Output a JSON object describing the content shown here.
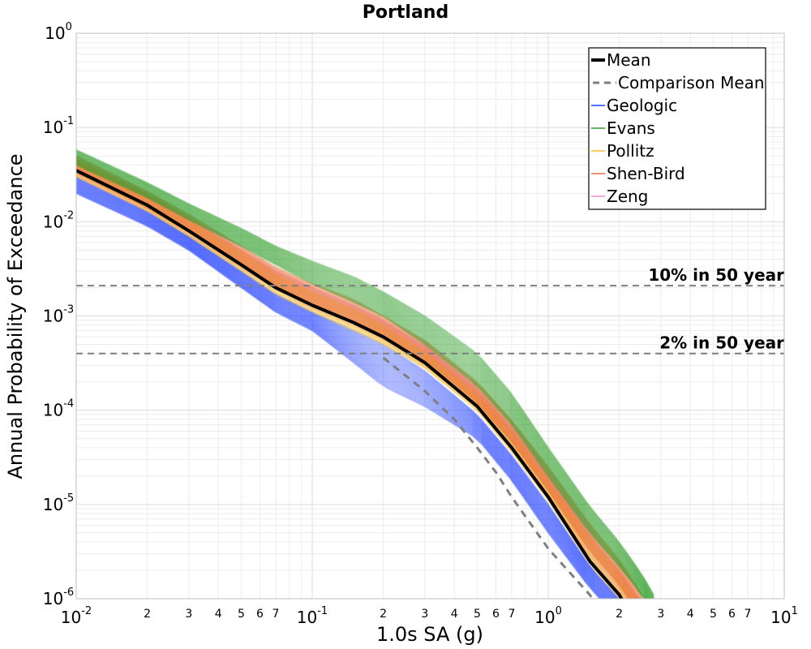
{
  "chart_data": {
    "type": "line",
    "title": "Portland",
    "xlabel": "1.0s SA (g)",
    "ylabel": "Annual Probability of Exceedance",
    "xscale": "log",
    "yscale": "log",
    "xlim": [
      0.01,
      10
    ],
    "ylim": [
      1e-06,
      1
    ],
    "grid": true,
    "legend_position": "top-right",
    "x_major_ticks": [
      {
        "value": 0.01,
        "base": "10",
        "exp": "-2"
      },
      {
        "value": 0.1,
        "base": "10",
        "exp": "-1"
      },
      {
        "value": 1,
        "base": "10",
        "exp": "0"
      },
      {
        "value": 10,
        "base": "10",
        "exp": "1"
      }
    ],
    "x_minor_labels": [
      "2",
      "3",
      "4",
      "5",
      "6",
      "7"
    ],
    "y_major_ticks": [
      {
        "value": 1,
        "base": "10",
        "exp": "0"
      },
      {
        "value": 0.1,
        "base": "10",
        "exp": "-1"
      },
      {
        "value": 0.01,
        "base": "10",
        "exp": "-2"
      },
      {
        "value": 0.001,
        "base": "10",
        "exp": "-3"
      },
      {
        "value": 0.0001,
        "base": "10",
        "exp": "-4"
      },
      {
        "value": 1e-05,
        "base": "10",
        "exp": "-5"
      },
      {
        "value": 1e-06,
        "base": "10",
        "exp": "-6"
      }
    ],
    "reference_lines": [
      {
        "label": "10% in 50 year",
        "y": 0.0021,
        "color": "#7f7f7f"
      },
      {
        "label": "2% in 50 year",
        "y": 0.0004,
        "color": "#7f7f7f"
      }
    ],
    "series": [
      {
        "name": "Mean",
        "color": "#000000",
        "style": "solid",
        "x": [
          0.01,
          0.02,
          0.03,
          0.05,
          0.07,
          0.1,
          0.15,
          0.2,
          0.3,
          0.5,
          0.7,
          1.0,
          1.5,
          2.0,
          2.5
        ],
        "y": [
          0.035,
          0.015,
          0.008,
          0.0035,
          0.002,
          0.0013,
          0.00085,
          0.0006,
          0.00032,
          0.00011,
          4e-05,
          1.2e-05,
          2.5e-06,
          1.1e-06,
          4e-07
        ]
      },
      {
        "name": "Comparison Mean",
        "color": "#7f7f7f",
        "style": "dashed",
        "x": [
          0.2,
          0.3,
          0.4,
          0.5,
          0.6,
          0.7,
          1.0,
          1.5,
          2.0
        ],
        "y": [
          0.00036,
          0.00016,
          8e-05,
          4e-05,
          2.2e-05,
          1.2e-05,
          3.4e-06,
          1.1e-06,
          4e-07
        ]
      },
      {
        "name": "Geologic",
        "color": "#1f3fff",
        "band": "lower",
        "x": [
          0.01,
          0.02,
          0.03,
          0.05,
          0.07,
          0.1,
          0.15,
          0.2,
          0.3,
          0.5,
          0.7,
          1.0,
          1.5,
          2.0,
          2.5
        ],
        "lower": [
          0.02,
          0.009,
          0.005,
          0.002,
          0.0011,
          0.0007,
          0.00032,
          0.00018,
          0.00011,
          5e-05,
          1.8e-05,
          5e-06,
          1.3e-06,
          6e-07,
          4e-07
        ],
        "upper": [
          0.03,
          0.013,
          0.007,
          0.003,
          0.0017,
          0.0011,
          0.0007,
          0.0005,
          0.00026,
          9e-05,
          3.3e-05,
          1e-05,
          2.2e-06,
          1e-06,
          5e-07
        ]
      },
      {
        "name": "Evans",
        "color": "#33a02c",
        "band": "upper",
        "x": [
          0.01,
          0.02,
          0.03,
          0.05,
          0.07,
          0.1,
          0.15,
          0.2,
          0.3,
          0.5,
          0.7,
          1.0,
          1.5,
          2.0,
          2.5,
          2.8
        ],
        "lower": [
          0.04,
          0.018,
          0.0105,
          0.0055,
          0.0035,
          0.0022,
          0.0014,
          0.001,
          0.0005,
          0.00018,
          7e-05,
          2e-05,
          5e-06,
          2.2e-06,
          1.1e-06,
          6e-07
        ],
        "upper": [
          0.058,
          0.026,
          0.0155,
          0.0085,
          0.0055,
          0.0038,
          0.0026,
          0.0018,
          0.001,
          0.0004,
          0.00015,
          4e-05,
          9.5e-06,
          4e-06,
          1.8e-06,
          1.1e-06
        ]
      },
      {
        "name": "Pollitz",
        "color": "#f2c23a",
        "x": [
          0.01,
          0.02,
          0.03,
          0.05,
          0.07,
          0.1,
          0.15,
          0.2,
          0.3,
          0.5,
          0.7,
          1.0,
          1.5,
          2.0,
          2.5
        ],
        "lower": [
          0.03,
          0.013,
          0.007,
          0.003,
          0.0017,
          0.0011,
          0.0007,
          0.0005,
          0.00028,
          0.0001,
          3.6e-05,
          1.1e-05,
          2.3e-06,
          1e-06,
          5e-07
        ],
        "upper": [
          0.045,
          0.019,
          0.0105,
          0.0048,
          0.0028,
          0.0018,
          0.0012,
          0.0008,
          0.00042,
          0.00015,
          6e-05,
          1.8e-05,
          4.5e-06,
          1.9e-06,
          8e-07
        ]
      },
      {
        "name": "Shen-Bird",
        "color": "#e8743b",
        "x": [
          0.01,
          0.02,
          0.03,
          0.05,
          0.07,
          0.1,
          0.15,
          0.2,
          0.3,
          0.5,
          0.7,
          1.0,
          1.5,
          2.0,
          2.5
        ],
        "lower": [
          0.033,
          0.014,
          0.0078,
          0.0034,
          0.002,
          0.0013,
          0.00085,
          0.0006,
          0.00034,
          0.00012,
          4.6e-05,
          1.4e-05,
          3.2e-06,
          1.4e-06,
          6e-07
        ],
        "upper": [
          0.05,
          0.021,
          0.012,
          0.0055,
          0.0033,
          0.0022,
          0.0015,
          0.001,
          0.00055,
          0.0002,
          7.8e-05,
          2.5e-05,
          6.2e-06,
          2.6e-06,
          1.1e-06
        ]
      },
      {
        "name": "Zeng",
        "color": "#f08ccf",
        "x": [
          0.01,
          0.02,
          0.03,
          0.05,
          0.07,
          0.1,
          0.15,
          0.2,
          0.3,
          0.5,
          0.7,
          1.0,
          1.5,
          2.0,
          2.5
        ],
        "lower": [
          0.03,
          0.013,
          0.0072,
          0.0032,
          0.0019,
          0.0012,
          0.0008,
          0.00056,
          0.0003,
          0.00011,
          4e-05,
          1.2e-05,
          2.7e-06,
          1.2e-06,
          5e-07
        ],
        "upper": [
          0.045,
          0.02,
          0.011,
          0.005,
          0.003,
          0.002,
          0.0013,
          0.0009,
          0.00048,
          0.00017,
          6.5e-05,
          2e-05,
          4.8e-06,
          2e-06,
          9e-07
        ]
      }
    ]
  }
}
